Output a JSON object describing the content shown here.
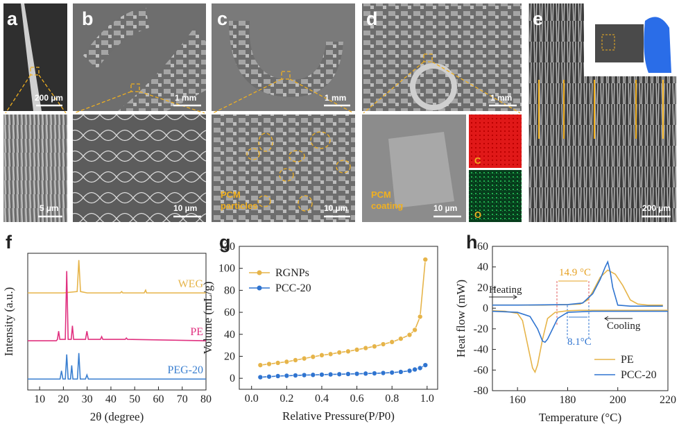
{
  "figure": {
    "panels": [
      {
        "letter": "a",
        "top_scale": "200 µm",
        "bottom_scale": "5 µm"
      },
      {
        "letter": "b",
        "top_scale": "1 mm",
        "bottom_scale": "10 µm"
      },
      {
        "letter": "c",
        "top_scale": "1 mm",
        "bottom_scale": "10 µm",
        "note": [
          "PCM",
          "particles"
        ]
      },
      {
        "letter": "d",
        "top_scale": "1 mm",
        "bottom_scale": "10 µm",
        "note": [
          "PCM",
          "coating"
        ],
        "map_labels": [
          "C",
          "O"
        ]
      },
      {
        "letter": "e",
        "scale": "200 µm"
      }
    ],
    "chart_letters": [
      "f",
      "g",
      "h"
    ]
  },
  "chart_data": [
    {
      "type": "line",
      "xlabel": "2θ (degree)",
      "ylabel": "Intensity (a.u.)",
      "xlim": [
        5,
        80
      ],
      "ylim": [
        0,
        1
      ],
      "xticks": [
        10,
        20,
        30,
        40,
        50,
        60,
        70,
        80
      ],
      "legend": "inline",
      "series": [
        {
          "name": "WEG",
          "color": "#e6b449",
          "x": [
            5,
            20,
            25.8,
            26.5,
            27.2,
            30,
            40,
            44,
            44.5,
            45,
            54,
            54.6,
            55,
            70,
            80
          ],
          "values": [
            0.71,
            0.71,
            0.72,
            0.95,
            0.72,
            0.71,
            0.71,
            0.71,
            0.72,
            0.71,
            0.71,
            0.73,
            0.71,
            0.71,
            0.71
          ]
        },
        {
          "name": "PE",
          "color": "#e0307f",
          "x": [
            5,
            17,
            17.5,
            18,
            18.5,
            20.8,
            21.4,
            22,
            23.3,
            23.8,
            24.3,
            29.3,
            29.9,
            30.5,
            35.6,
            36.1,
            36.6,
            46,
            46.5,
            47,
            80
          ],
          "values": [
            0.36,
            0.36,
            0.37,
            0.43,
            0.37,
            0.37,
            0.87,
            0.37,
            0.37,
            0.47,
            0.37,
            0.37,
            0.43,
            0.37,
            0.37,
            0.39,
            0.37,
            0.37,
            0.38,
            0.37,
            0.36
          ]
        },
        {
          "name": "PEG-20",
          "color": "#3a7fd0",
          "x": [
            5,
            18.6,
            19.2,
            19.8,
            20.8,
            21.4,
            22,
            23,
            23.5,
            24,
            25.9,
            26.5,
            27.1,
            29.3,
            29.9,
            30.5,
            80
          ],
          "values": [
            0.08,
            0.08,
            0.14,
            0.08,
            0.08,
            0.26,
            0.08,
            0.08,
            0.18,
            0.08,
            0.08,
            0.27,
            0.08,
            0.08,
            0.11,
            0.08,
            0.08
          ]
        }
      ]
    },
    {
      "type": "line",
      "markers": true,
      "xlabel": "Relative Pressure(P/P0)",
      "ylabel": "Volume (mL/g)",
      "xlim": [
        -0.07,
        1.06
      ],
      "ylim": [
        -10,
        120
      ],
      "xticks": [
        {
          "value": 0,
          "label": "0.0"
        },
        0.2,
        0.4,
        0.6,
        0.8,
        {
          "value": 1,
          "label": "1.0"
        }
      ],
      "yticks": [
        0,
        20,
        40,
        60,
        80,
        100,
        120
      ],
      "legend": "upper left",
      "series": [
        {
          "name": "RGNPs",
          "color": "#e6b449",
          "x": [
            0.05,
            0.1,
            0.15,
            0.2,
            0.25,
            0.3,
            0.35,
            0.4,
            0.45,
            0.5,
            0.55,
            0.6,
            0.65,
            0.7,
            0.75,
            0.8,
            0.85,
            0.9,
            0.93,
            0.96,
            0.99
          ],
          "values": [
            12,
            13,
            14,
            15,
            16.5,
            18,
            19.5,
            21,
            22,
            23.5,
            24.5,
            26,
            27.5,
            29,
            31,
            33,
            36,
            39.5,
            44,
            56,
            108
          ]
        },
        {
          "name": "PCC-20",
          "color": "#2f74d0",
          "x": [
            0.05,
            0.1,
            0.15,
            0.2,
            0.25,
            0.3,
            0.35,
            0.4,
            0.45,
            0.5,
            0.55,
            0.6,
            0.65,
            0.7,
            0.75,
            0.8,
            0.85,
            0.9,
            0.93,
            0.96,
            0.99
          ],
          "values": [
            1,
            1.5,
            2,
            2.3,
            2.6,
            2.9,
            3.1,
            3.3,
            3.5,
            3.7,
            3.9,
            4.1,
            4.3,
            4.5,
            4.8,
            5.2,
            5.8,
            6.8,
            8,
            9.3,
            12
          ]
        }
      ]
    },
    {
      "type": "line",
      "xlabel": "Temperature (°C)",
      "ylabel": "Heat flow (mW)",
      "xlim": [
        150,
        220
      ],
      "ylim": [
        -80,
        60
      ],
      "xticks": [
        160,
        180,
        200,
        220
      ],
      "yticks": [
        -80,
        -60,
        -40,
        -20,
        0,
        20,
        40,
        60
      ],
      "legend": "lower right",
      "annotations": [
        {
          "text": "Heating",
          "color": "#222"
        },
        {
          "text": "Cooling",
          "color": "#222"
        },
        {
          "text": "14.9 °C",
          "color": "#e6a020"
        },
        {
          "text": "8.1°C",
          "color": "#2f74d0"
        }
      ],
      "series": [
        {
          "name": "PE",
          "color": "#e6b449",
          "x": [
            150,
            160,
            170,
            180,
            185,
            188,
            190,
            193,
            196,
            199,
            202,
            205,
            208,
            212,
            218,
            219,
            220,
            200,
            185,
            180,
            175,
            172,
            170,
            168,
            167,
            166,
            164,
            162,
            160,
            155,
            150
          ],
          "values": [
            3,
            3,
            3,
            3.5,
            4,
            8,
            16,
            30,
            37,
            33,
            22,
            8,
            4,
            3,
            3,
            null,
            -2,
            -2,
            -2,
            -2.5,
            -4,
            -10,
            -30,
            -55,
            -62,
            -58,
            -35,
            -12,
            -5,
            -3,
            -2.5
          ]
        },
        {
          "name": "PCC-20",
          "color": "#2f74d0",
          "x": [
            150,
            160,
            180,
            186,
            190,
            193,
            195,
            196,
            197,
            198,
            200,
            205,
            210,
            218,
            219,
            220,
            190,
            180,
            176,
            174,
            172,
            171,
            170,
            168,
            165,
            160,
            150
          ],
          "values": [
            3,
            3,
            3.5,
            5,
            14,
            28,
            40,
            45,
            35,
            20,
            3,
            2,
            2,
            2,
            null,
            -3,
            -3,
            -4,
            -10,
            -20,
            -30,
            -33,
            -32,
            -20,
            -8,
            -4,
            -3
          ]
        }
      ]
    }
  ]
}
